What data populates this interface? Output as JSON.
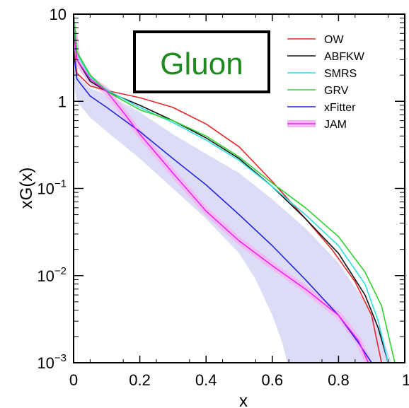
{
  "chart_data": {
    "type": "line",
    "title": "Gluon",
    "xlabel": "x",
    "ylabel": "xG(x)",
    "xlim": [
      0,
      1
    ],
    "ylim": [
      0.001,
      10
    ],
    "yscale": "log",
    "x_ticks": [
      {
        "value": 0,
        "label": "0"
      },
      {
        "value": 0.2,
        "label": "0.2"
      },
      {
        "value": 0.4,
        "label": "0.4"
      },
      {
        "value": 0.6,
        "label": "0.6"
      },
      {
        "value": 0.8,
        "label": "0.8"
      },
      {
        "value": 1.0,
        "label": "1"
      }
    ],
    "y_ticks": [
      {
        "value": 10,
        "base": "10",
        "exp": ""
      },
      {
        "value": 1,
        "base": "1",
        "exp": ""
      },
      {
        "value": 0.1,
        "base": "10",
        "exp": "−1"
      },
      {
        "value": 0.01,
        "base": "10",
        "exp": "−2"
      },
      {
        "value": 0.001,
        "base": "10",
        "exp": "−3"
      }
    ],
    "grid": false,
    "legend_position": "top-right",
    "series": [
      {
        "name": "OW",
        "color": "#e8262a",
        "points": [
          [
            0.001,
            4.0
          ],
          [
            0.01,
            2.1
          ],
          [
            0.05,
            1.5
          ],
          [
            0.1,
            1.33
          ],
          [
            0.2,
            1.1
          ],
          [
            0.3,
            0.85
          ],
          [
            0.4,
            0.55
          ],
          [
            0.5,
            0.3
          ],
          [
            0.6,
            0.12
          ],
          [
            0.7,
            0.045
          ],
          [
            0.78,
            0.02
          ],
          [
            0.85,
            0.0085
          ],
          [
            0.9,
            0.0035
          ],
          [
            0.93,
            0.001
          ]
        ]
      },
      {
        "name": "ABFKW",
        "color": "#111111",
        "points": [
          [
            0.001,
            6.0
          ],
          [
            0.01,
            3.0
          ],
          [
            0.05,
            1.7
          ],
          [
            0.1,
            1.3
          ],
          [
            0.2,
            0.9
          ],
          [
            0.3,
            0.6
          ],
          [
            0.4,
            0.38
          ],
          [
            0.5,
            0.22
          ],
          [
            0.6,
            0.105
          ],
          [
            0.7,
            0.045
          ],
          [
            0.8,
            0.018
          ],
          [
            0.88,
            0.006
          ],
          [
            0.92,
            0.0025
          ],
          [
            0.95,
            0.001
          ]
        ]
      },
      {
        "name": "SMRS",
        "color": "#2bdede",
        "points": [
          [
            0.001,
            8.0
          ],
          [
            0.01,
            3.5
          ],
          [
            0.05,
            1.9
          ],
          [
            0.1,
            1.35
          ],
          [
            0.2,
            0.85
          ],
          [
            0.3,
            0.57
          ],
          [
            0.4,
            0.36
          ],
          [
            0.5,
            0.21
          ],
          [
            0.6,
            0.105
          ],
          [
            0.7,
            0.05
          ],
          [
            0.8,
            0.022
          ],
          [
            0.88,
            0.008
          ],
          [
            0.92,
            0.003
          ],
          [
            0.95,
            0.001
          ]
        ]
      },
      {
        "name": "GRV",
        "color": "#2fd12f",
        "points": [
          [
            0.001,
            9.5
          ],
          [
            0.01,
            3.7
          ],
          [
            0.05,
            2.0
          ],
          [
            0.1,
            1.3
          ],
          [
            0.2,
            0.8
          ],
          [
            0.3,
            0.6
          ],
          [
            0.4,
            0.4
          ],
          [
            0.5,
            0.23
          ],
          [
            0.6,
            0.115
          ],
          [
            0.7,
            0.06
          ],
          [
            0.8,
            0.028
          ],
          [
            0.88,
            0.011
          ],
          [
            0.93,
            0.0045
          ],
          [
            0.97,
            0.001
          ]
        ]
      },
      {
        "name": "xFitter",
        "color": "#2323e0",
        "points": [
          [
            0.001,
            3.5
          ],
          [
            0.01,
            1.8
          ],
          [
            0.05,
            1.15
          ],
          [
            0.1,
            0.85
          ],
          [
            0.2,
            0.45
          ],
          [
            0.3,
            0.22
          ],
          [
            0.4,
            0.11
          ],
          [
            0.5,
            0.05
          ],
          [
            0.6,
            0.022
          ],
          [
            0.7,
            0.009
          ],
          [
            0.8,
            0.0035
          ],
          [
            0.86,
            0.0017
          ],
          [
            0.9,
            0.001
          ]
        ]
      },
      {
        "name": "JAM",
        "color": "#ee22ee",
        "band_color": "#f5b6f5",
        "points": [
          [
            0.001,
            6.0
          ],
          [
            0.01,
            3.0
          ],
          [
            0.05,
            1.8
          ],
          [
            0.1,
            1.3
          ],
          [
            0.15,
            0.75
          ],
          [
            0.2,
            0.42
          ],
          [
            0.3,
            0.15
          ],
          [
            0.4,
            0.055
          ],
          [
            0.5,
            0.025
          ],
          [
            0.6,
            0.013
          ],
          [
            0.7,
            0.007
          ],
          [
            0.8,
            0.0035
          ],
          [
            0.86,
            0.0018
          ],
          [
            0.89,
            0.001
          ]
        ]
      }
    ],
    "xfitter_band": {
      "color": "#dcdcf7",
      "upper": [
        [
          0.001,
          3.5
        ],
        [
          0.01,
          2.0
        ],
        [
          0.05,
          1.4
        ],
        [
          0.1,
          1.2
        ],
        [
          0.2,
          0.75
        ],
        [
          0.3,
          0.42
        ],
        [
          0.4,
          0.25
        ],
        [
          0.5,
          0.15
        ],
        [
          0.6,
          0.075
        ],
        [
          0.7,
          0.035
        ],
        [
          0.8,
          0.014
        ],
        [
          0.88,
          0.005
        ],
        [
          0.93,
          0.0022
        ],
        [
          0.96,
          0.001
        ]
      ],
      "lower": [
        [
          0.001,
          1.6
        ],
        [
          0.01,
          1.0
        ],
        [
          0.05,
          0.65
        ],
        [
          0.1,
          0.45
        ],
        [
          0.2,
          0.22
        ],
        [
          0.3,
          0.1
        ],
        [
          0.4,
          0.045
        ],
        [
          0.5,
          0.018
        ],
        [
          0.55,
          0.009
        ],
        [
          0.6,
          0.0035
        ],
        [
          0.63,
          0.0017
        ],
        [
          0.645,
          0.001
        ]
      ]
    }
  }
}
